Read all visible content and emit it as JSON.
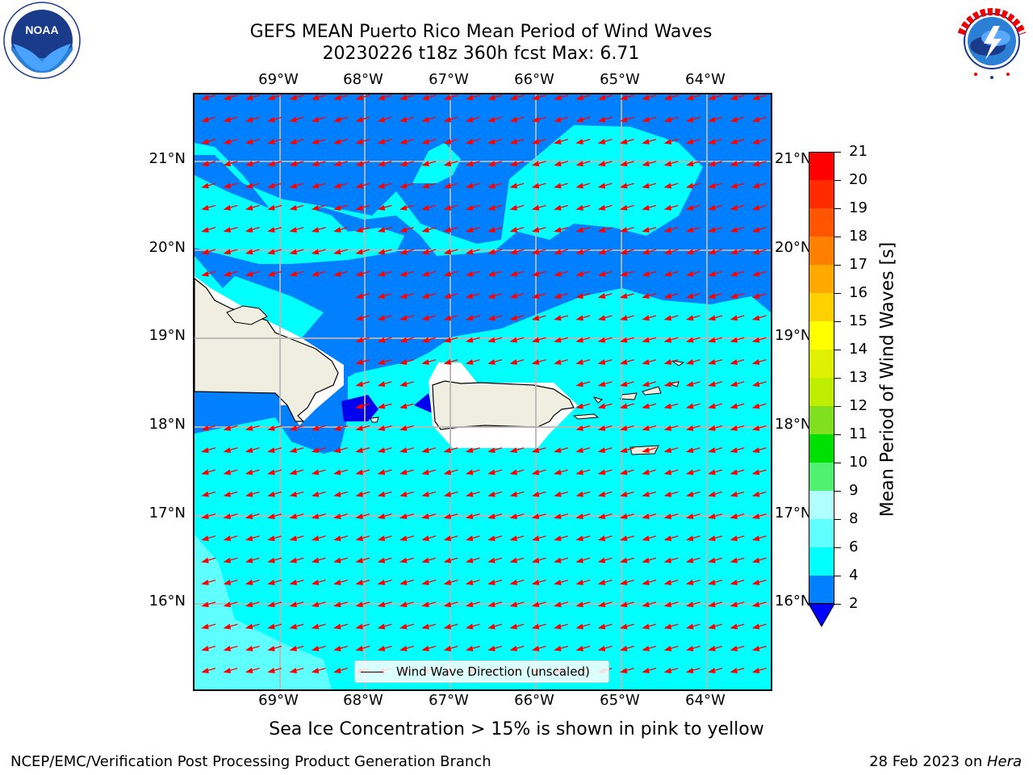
{
  "title": {
    "line1": "GEFS MEAN Puerto Rico Mean Period of Wind Waves",
    "line2": "20230226 t18z 360h fcst   Max: 6.71"
  },
  "subtitle": "Sea Ice Concentration > 15% is shown in pink to yellow",
  "footer": {
    "left": "NCEP/EMC/Verification Post Processing Product Generation Branch",
    "right_date": "28 Feb 2023 on ",
    "right_host": "Hera"
  },
  "logos": {
    "noaa": "NOAA",
    "noaa_ring": "NATIONAL OCEANIC AND ATMOSPHERIC ADMINISTRATION · U.S. DEPARTMENT OF COMMERCE",
    "nws_ring": "NATIONAL WEATHER SERVICE"
  },
  "axes": {
    "lon_labels": [
      "69°W",
      "68°W",
      "67°W",
      "66°W",
      "65°W",
      "64°W"
    ],
    "lat_labels": [
      "21°N",
      "20°N",
      "19°N",
      "18°N",
      "17°N",
      "16°N"
    ]
  },
  "legend": {
    "label": "Wind Wave Direction (unscaled)"
  },
  "colorbar": {
    "label": "Mean Period of Wind Waves [s]",
    "ticks": [
      "21",
      "20",
      "19",
      "18",
      "17",
      "16",
      "15",
      "14",
      "13",
      "12",
      "11",
      "10",
      "9",
      "8",
      "6",
      "4",
      "2"
    ],
    "colors": [
      "#ff0000",
      "#ff2a00",
      "#ff5500",
      "#ff8000",
      "#ffa800",
      "#ffd000",
      "#ffff00",
      "#e0f000",
      "#c0ee00",
      "#80e020",
      "#00e000",
      "#50f070",
      "#b0ffff",
      "#60ffff",
      "#00ffff",
      "#0080ff",
      "#0000ff"
    ]
  },
  "colors": {
    "ocean_4_6": "#00ffff",
    "ocean_2_4": "#0080ff",
    "ocean_6_8": "#60ffff",
    "deep": "#0000ee",
    "land": "#f0eee0",
    "arrow": "#ff0000"
  }
}
